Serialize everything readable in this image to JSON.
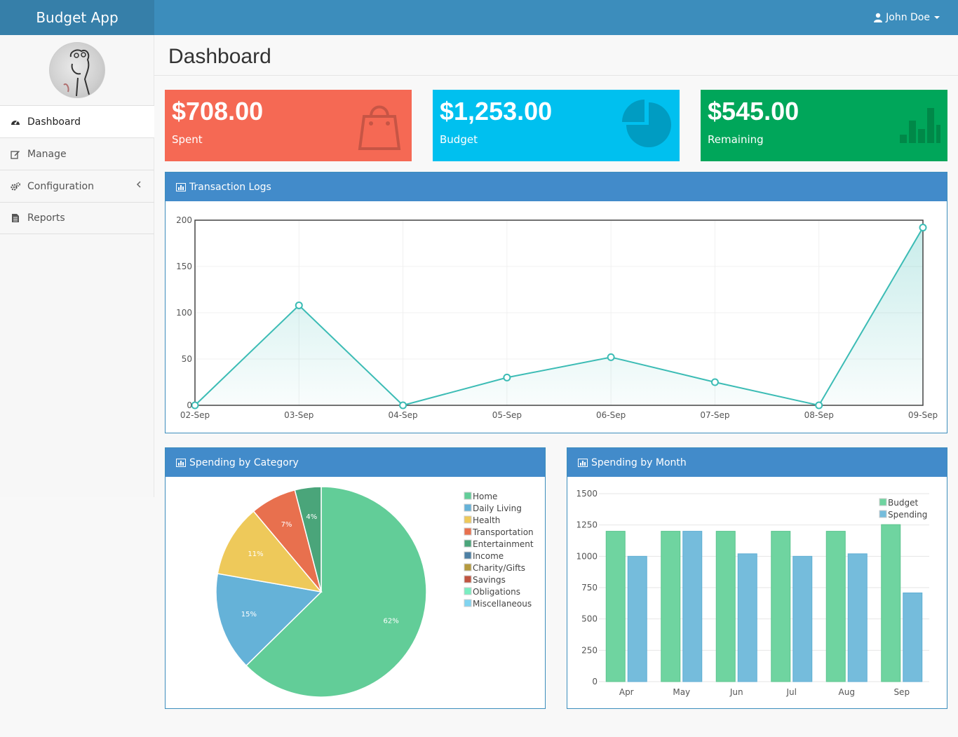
{
  "app": {
    "brand": "Budget App",
    "user": "John Doe"
  },
  "sidebar": {
    "items": [
      {
        "label": "Dashboard",
        "icon": "dashboard-icon"
      },
      {
        "label": "Manage",
        "icon": "edit-icon"
      },
      {
        "label": "Configuration",
        "icon": "gears-icon"
      },
      {
        "label": "Reports",
        "icon": "file-icon"
      }
    ]
  },
  "page": {
    "title": "Dashboard"
  },
  "stats": {
    "spent": {
      "amount": "$708.00",
      "label": "Spent",
      "color": "#f56954"
    },
    "budget": {
      "amount": "$1,253.00",
      "label": "Budget",
      "color": "#00c0ef"
    },
    "remaining": {
      "amount": "$545.00",
      "label": "Remaining",
      "color": "#00a65a"
    }
  },
  "panels": {
    "transactions": "Transaction Logs",
    "category": "Spending by Category",
    "month": "Spending by Month"
  },
  "chart_data": [
    {
      "type": "area",
      "title": "Transaction Logs",
      "x": [
        "02-Sep",
        "03-Sep",
        "04-Sep",
        "05-Sep",
        "06-Sep",
        "07-Sep",
        "08-Sep",
        "09-Sep"
      ],
      "values": [
        0,
        108,
        0,
        30,
        52,
        25,
        0,
        192
      ],
      "ylim": [
        0,
        200
      ],
      "yticks": [
        0,
        50,
        100,
        150,
        200
      ],
      "color": "#3cbcb5"
    },
    {
      "type": "pie",
      "title": "Spending by Category",
      "slices": [
        {
          "label": "Home",
          "value": 62,
          "text": "62%",
          "color": "#62cd98"
        },
        {
          "label": "Daily Living",
          "value": 15,
          "text": "15%",
          "color": "#65b2d8"
        },
        {
          "label": "Health",
          "value": 11,
          "text": "11%",
          "color": "#eec95a"
        },
        {
          "label": "Transportation",
          "value": 7,
          "text": "7%",
          "color": "#e8704e"
        },
        {
          "label": "Entertainment",
          "value": 4,
          "text": "4%",
          "color": "#4aa57a"
        },
        {
          "label": "Income",
          "value": 0,
          "text": "",
          "color": "#4d80a4"
        },
        {
          "label": "Charity/Gifts",
          "value": 0,
          "text": "",
          "color": "#b59a3f"
        },
        {
          "label": "Savings",
          "value": 0,
          "text": "",
          "color": "#c05440"
        },
        {
          "label": "Obligations",
          "value": 0,
          "text": "",
          "color": "#79eec1"
        },
        {
          "label": "Miscellaneous",
          "value": 0,
          "text": "",
          "color": "#80d4f0"
        }
      ]
    },
    {
      "type": "bar",
      "title": "Spending by Month",
      "categories": [
        "Apr",
        "May",
        "Jun",
        "Jul",
        "Aug",
        "Sep"
      ],
      "series": [
        {
          "name": "Budget",
          "values": [
            1200,
            1200,
            1200,
            1200,
            1200,
            1253
          ],
          "color": "#6fd4a0"
        },
        {
          "name": "Spending",
          "values": [
            1000,
            1200,
            1020,
            1000,
            1020,
            708
          ],
          "color": "#75bcdc"
        }
      ],
      "ylim": [
        0,
        1500
      ],
      "yticks": [
        0,
        250,
        500,
        750,
        1000,
        1250,
        1500
      ]
    }
  ]
}
